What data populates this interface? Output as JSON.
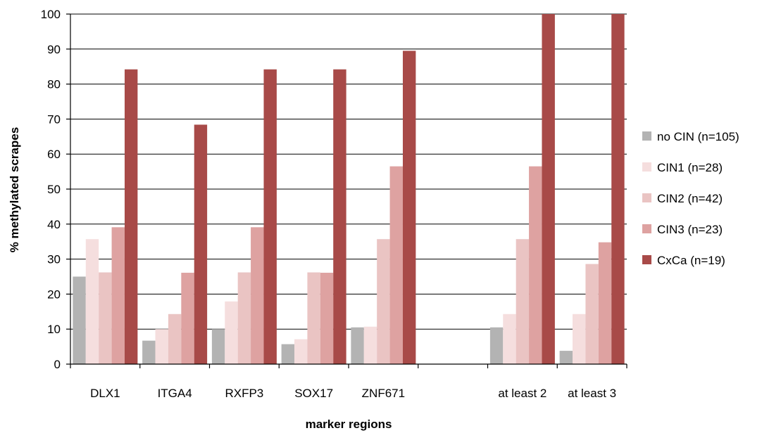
{
  "chart_data": {
    "type": "bar",
    "title": "",
    "xlabel": "marker regions",
    "ylabel": "% methylated scrapes",
    "ylim": [
      0,
      100
    ],
    "yticks": [
      0,
      10,
      20,
      30,
      40,
      50,
      60,
      70,
      80,
      90,
      100
    ],
    "grid": true,
    "legend_position": "right",
    "categories": [
      "DLX1",
      "ITGA4",
      "RXFP3",
      "SOX17",
      "ZNF671",
      "",
      "at least 2",
      "at least 3"
    ],
    "series": [
      {
        "name": "no CIN (n=105)",
        "color": "#b3b3b3",
        "values": [
          25,
          6.7,
          10,
          5.7,
          10.5,
          null,
          10.5,
          3.8
        ]
      },
      {
        "name": "CIN1 (n=28)",
        "color": "#f5dede",
        "values": [
          35.7,
          10,
          17.9,
          7.1,
          10.7,
          null,
          14.3,
          14.3
        ]
      },
      {
        "name": "CIN2 (n=42)",
        "color": "#eac4c3",
        "values": [
          26.2,
          14.3,
          26.2,
          26.2,
          35.7,
          null,
          35.7,
          28.6
        ]
      },
      {
        "name": "CIN3 (n=23)",
        "color": "#dea2a1",
        "values": [
          39.1,
          26.1,
          39.1,
          26.1,
          56.5,
          null,
          56.5,
          34.8
        ]
      },
      {
        "name": "CxCa (n=19)",
        "color": "#a84a48",
        "values": [
          84.2,
          68.4,
          84.2,
          84.2,
          89.5,
          null,
          100,
          100
        ]
      }
    ]
  }
}
